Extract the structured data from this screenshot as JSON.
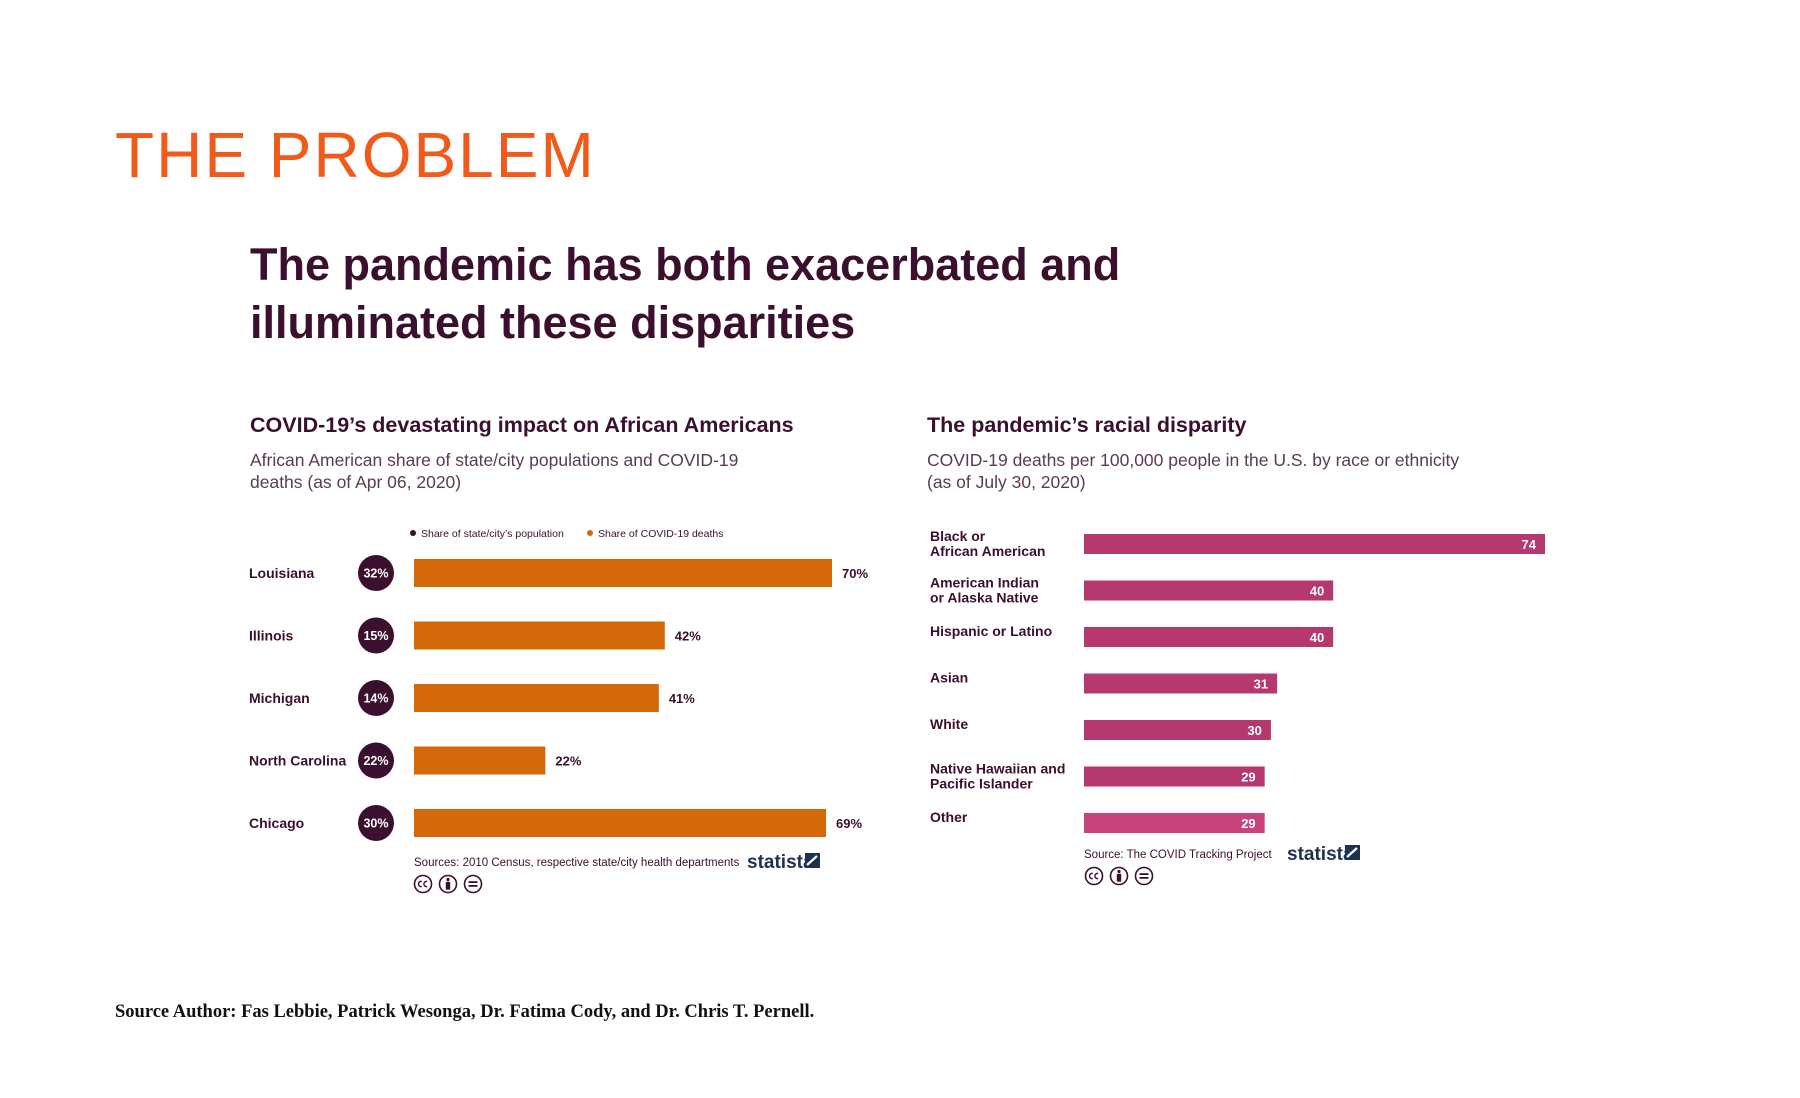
{
  "slide": {
    "title": "THE PROBLEM",
    "headline_line1": "The pandemic has both exacerbated and",
    "headline_line2": "illuminated these disparities",
    "footer": "Source Author: Fas Lebbie, Patrick Wesonga, Dr. Fatima Cody, and Dr. Chris T. Pernell."
  },
  "colors": {
    "title_orange": "#f05a1a",
    "dark_purple": "#3b0f2e",
    "bar_orange": "#d4690a",
    "bar_magenta": "#b5386f",
    "bar_pink": "#c8437b",
    "statista_navy": "#1e3150"
  },
  "chart_data": [
    {
      "type": "bar",
      "orientation": "horizontal",
      "title": "COVID-19’s devastating impact on African Americans",
      "subtitle_line1": "African American share of state/city populations and COVID-19",
      "subtitle_line2": "deaths (as of Apr 06, 2020)",
      "legend": [
        "Share of state/city’s population",
        "Share of COVID-19 deaths"
      ],
      "categories": [
        "Louisiana",
        "Illinois",
        "Michigan",
        "North Carolina",
        "Chicago"
      ],
      "series": [
        {
          "name": "Share of state/city’s population",
          "values": [
            32,
            15,
            14,
            22,
            30
          ],
          "labels": [
            "32%",
            "15%",
            "14%",
            "22%",
            "30%"
          ]
        },
        {
          "name": "Share of COVID-19 deaths",
          "values": [
            70,
            42,
            41,
            22,
            69
          ],
          "labels": [
            "70%",
            "42%",
            "41%",
            "22%",
            "69%"
          ]
        }
      ],
      "xlim": [
        0,
        70
      ],
      "source": "Sources: 2010 Census, respective state/city health departments",
      "brand": "statista"
    },
    {
      "type": "bar",
      "orientation": "horizontal",
      "title": "The pandemic’s racial disparity",
      "subtitle_line1": "COVID-19 deaths per 100,000 people in the U.S. by race or ethnicity",
      "subtitle_line2": "(as of July 30, 2020)",
      "categories": [
        [
          "Black or",
          "African American"
        ],
        [
          "American Indian",
          "or Alaska Native"
        ],
        [
          "Hispanic or Latino"
        ],
        [
          "Asian"
        ],
        [
          "White"
        ],
        [
          "Native Hawaiian and",
          "Pacific Islander"
        ],
        [
          "Other"
        ]
      ],
      "values": [
        74,
        40,
        40,
        31,
        30,
        29,
        29
      ],
      "xlim": [
        0,
        74
      ],
      "source": "Source: The COVID Tracking Project",
      "brand": "statista"
    }
  ]
}
